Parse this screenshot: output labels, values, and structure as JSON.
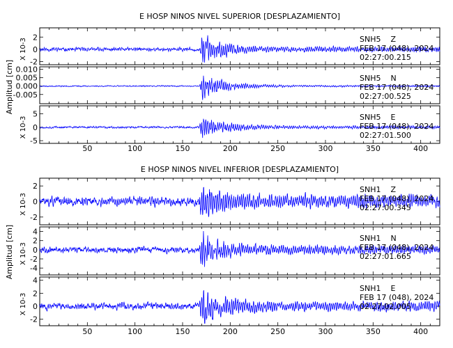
{
  "chart_data": [
    {
      "type": "line",
      "title": "E HOSP NINOS NIVEL SUPERIOR [DESPLAZAMIENTO]",
      "ylabel": "Amplitud [cm]",
      "xlim": [
        0,
        420
      ],
      "xticks": [
        50,
        100,
        150,
        200,
        250,
        300,
        350,
        400
      ],
      "event_onset_s": 168,
      "line_color": "#0000ff",
      "traces": [
        {
          "station": "SNH5",
          "component": "Z",
          "date_label": "FEB 17 (048), 2024",
          "time_label": "02:27:00.215",
          "scale_label": "X 10-3",
          "ylim": [
            -2.5,
            3.5
          ],
          "yticks": [
            -2,
            0,
            2
          ],
          "background_amp": 0.45,
          "peak_amp": 2.9,
          "seed": 11
        },
        {
          "station": "SNH5",
          "component": "N",
          "date_label": "FEB 17 (048), 2024",
          "time_label": "02:27:00.525",
          "scale_label": "",
          "ylim": [
            -0.0105,
            0.0115
          ],
          "yticks": [
            -0.005,
            0.0,
            0.005,
            0.01
          ],
          "tick_labels": [
            "-0.005",
            "0.000",
            "0.005",
            "0.010"
          ],
          "background_amp": 0.0006,
          "peak_amp": 0.0095,
          "seed": 23
        },
        {
          "station": "SNH5",
          "component": "E",
          "date_label": "FEB 17 (048), 2024",
          "time_label": "02:27:01.500",
          "scale_label": "X 10-3",
          "ylim": [
            -6,
            8
          ],
          "yticks": [
            -5,
            0,
            5
          ],
          "background_amp": 0.6,
          "peak_amp": 5.5,
          "seed": 37
        }
      ]
    },
    {
      "type": "line",
      "title": "E HOSP NINOS NIVEL INFERIOR [DESPLAZAMIENTO]",
      "ylabel": "Amplitud [cm]",
      "xlim": [
        0,
        420
      ],
      "xticks": [
        50,
        100,
        150,
        200,
        250,
        300,
        350,
        400
      ],
      "event_onset_s": 168,
      "line_color": "#0000ff",
      "traces": [
        {
          "station": "SNH1",
          "component": "Z",
          "date_label": "FEB 17 (048), 2024",
          "time_label": "02:27:00.345",
          "scale_label": "X 10-3",
          "ylim": [
            -3,
            3
          ],
          "yticks": [
            -2,
            0,
            2
          ],
          "background_amp": 0.9,
          "peak_amp": 2.6,
          "seed": 51
        },
        {
          "station": "SNH1",
          "component": "N",
          "date_label": "FEB 17 (048), 2024",
          "time_label": "02:27:01.665",
          "scale_label": "X 10-3",
          "ylim": [
            -5.5,
            5
          ],
          "yticks": [
            -4,
            -2,
            0,
            2,
            4
          ],
          "background_amp": 1.0,
          "peak_amp": 4.5,
          "seed": 67
        },
        {
          "station": "SNH1",
          "component": "E",
          "date_label": "FEB 17 (048), 2024",
          "time_label": "02:27:02.005",
          "scale_label": "X 10-3",
          "ylim": [
            -3,
            4.5
          ],
          "yticks": [
            -2,
            0,
            2,
            4
          ],
          "background_amp": 0.8,
          "peak_amp": 3.6,
          "seed": 83
        }
      ]
    }
  ]
}
